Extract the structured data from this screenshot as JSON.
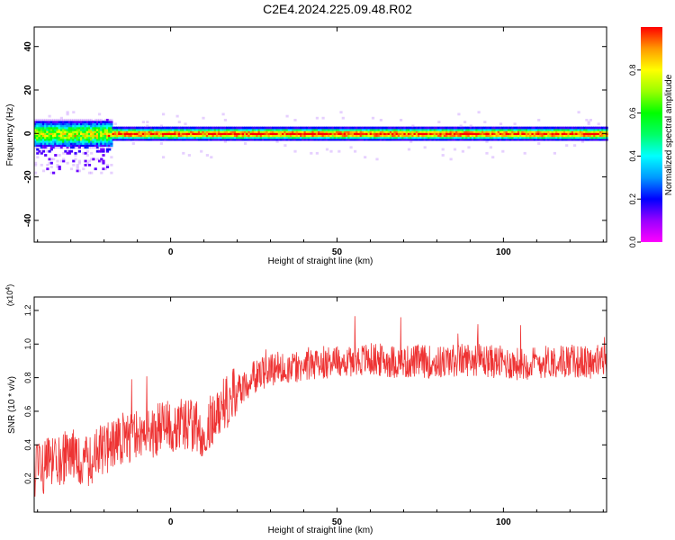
{
  "title": "C2E4.2024.225.09.48.R02",
  "chart_data": [
    {
      "type": "heatmap",
      "xlabel": "Height of straight line (km)",
      "ylabel": "Frequency (Hz)",
      "xlim": [
        -41,
        131
      ],
      "ylim": [
        -50,
        49
      ],
      "x_ticks": [
        0,
        50,
        100
      ],
      "y_ticks": [
        -40,
        -20,
        0,
        20,
        40
      ],
      "grid": false,
      "band_center_hz": 0,
      "colorbar": {
        "label": "Normalized spectral amplitude",
        "range": [
          0.0,
          1.0
        ],
        "ticks": [
          0.0,
          0.2,
          0.4,
          0.6,
          0.8
        ],
        "colors": [
          "#ff00ff",
          "#9900ff",
          "#0000ff",
          "#0099ff",
          "#00ffff",
          "#00ff66",
          "#00ff00",
          "#99ff00",
          "#ffff00",
          "#ff9900",
          "#ff0000"
        ]
      }
    },
    {
      "type": "line",
      "xlabel": "Height of straight line (km)",
      "ylabel": "SNR (10 * v/v)",
      "y_multiplier": "(x10^4)",
      "xlim": [
        -41,
        131
      ],
      "ylim": [
        0.0,
        1.28
      ],
      "x_ticks": [
        0,
        50,
        100
      ],
      "y_ticks": [
        0.2,
        0.4,
        0.6,
        0.8,
        1.0,
        1.2
      ],
      "grid": false,
      "line_color": "#ee3333",
      "x": [
        -40,
        -35,
        -30,
        -25,
        -20,
        -15,
        -10,
        -5,
        0,
        5,
        10,
        15,
        20,
        25,
        30,
        35,
        40,
        45,
        50,
        55,
        60,
        65,
        70,
        75,
        80,
        85,
        90,
        95,
        100,
        105,
        110,
        115,
        120,
        125,
        130
      ],
      "y": [
        0.25,
        0.3,
        0.34,
        0.3,
        0.38,
        0.42,
        0.46,
        0.48,
        0.52,
        0.53,
        0.48,
        0.62,
        0.72,
        0.8,
        0.85,
        0.86,
        0.88,
        0.89,
        0.9,
        0.9,
        0.91,
        0.9,
        0.89,
        0.9,
        0.89,
        0.9,
        0.91,
        0.9,
        0.89,
        0.88,
        0.89,
        0.9,
        0.9,
        0.89,
        0.9
      ]
    }
  ]
}
